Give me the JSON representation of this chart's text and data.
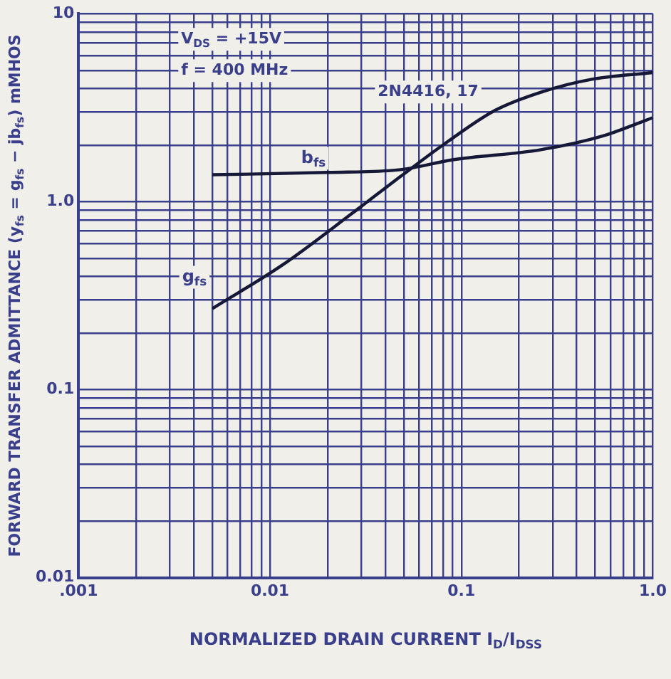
{
  "chart_data": {
    "type": "line",
    "xlabel": "NORMALIZED DRAIN CURRENT I$_{D}$/I$_{DSS}$",
    "ylabel": "FORWARD TRANSFER ADMITTANCE (y$_{fs}$ = g$_{fs}$ − jb$_{fs}$) mMHOS",
    "log": "xy",
    "grid": true,
    "marker": "none",
    "line_style": "solid",
    "xlim": [
      0.001,
      1
    ],
    "ylim": [
      0.01,
      10
    ],
    "xticks": [
      {
        "value": 0.001,
        "label": ".001"
      },
      {
        "value": 0.002,
        "label": null
      },
      {
        "value": 0.003,
        "label": null
      },
      {
        "value": 0.004,
        "label": null
      },
      {
        "value": 0.005,
        "label": null
      },
      {
        "value": 0.006,
        "label": null
      },
      {
        "value": 0.007,
        "label": null
      },
      {
        "value": 0.008,
        "label": null
      },
      {
        "value": 0.009,
        "label": null
      },
      0.01,
      {
        "value": 0.02,
        "label": null
      },
      {
        "value": 0.03,
        "label": null
      },
      {
        "value": 0.04,
        "label": null
      },
      {
        "value": 0.05,
        "label": null
      },
      {
        "value": 0.06,
        "label": null
      },
      {
        "value": 0.07,
        "label": null
      },
      {
        "value": 0.08,
        "label": null
      },
      {
        "value": 0.09,
        "label": null
      },
      0.1,
      {
        "value": 0.2,
        "label": null
      },
      {
        "value": 0.3,
        "label": null
      },
      {
        "value": 0.4,
        "label": null
      },
      {
        "value": 0.5,
        "label": null
      },
      {
        "value": 0.6,
        "label": null
      },
      {
        "value": 0.7,
        "label": null
      },
      {
        "value": 0.8,
        "label": null
      },
      {
        "value": 0.9,
        "label": null
      },
      {
        "value": 1,
        "label": "1.0"
      }
    ],
    "yticks": [
      0.01,
      {
        "value": 0.02,
        "label": null
      },
      {
        "value": 0.03,
        "label": null
      },
      {
        "value": 0.04,
        "label": null
      },
      {
        "value": 0.05,
        "label": null
      },
      {
        "value": 0.06,
        "label": null
      },
      {
        "value": 0.07,
        "label": null
      },
      {
        "value": 0.08,
        "label": null
      },
      {
        "value": 0.09,
        "label": null
      },
      0.1,
      {
        "value": 0.2,
        "label": null
      },
      {
        "value": 0.3,
        "label": null
      },
      {
        "value": 0.4,
        "label": null
      },
      {
        "value": 0.5,
        "label": null
      },
      {
        "value": 0.6,
        "label": null
      },
      {
        "value": 0.7,
        "label": null
      },
      {
        "value": 0.8,
        "label": null
      },
      {
        "value": 0.9,
        "label": null
      },
      {
        "value": 1,
        "label": "1.0"
      },
      {
        "value": 2,
        "label": null
      },
      {
        "value": 3,
        "label": null
      },
      {
        "value": 4,
        "label": null
      },
      {
        "value": 5,
        "label": null
      },
      {
        "value": 6,
        "label": null
      },
      {
        "value": 7,
        "label": null
      },
      {
        "value": 8,
        "label": null
      },
      {
        "value": 9,
        "label": null
      },
      10
    ],
    "series": [
      {
        "name": "g$_{fs}$",
        "color": "#161838",
        "x": [
          0.005,
          0.0116,
          0.027,
          0.048,
          0.085,
          0.15,
          0.26,
          0.47,
          1.0
        ],
        "values": [
          0.27,
          0.46,
          0.87,
          1.36,
          2.09,
          3.06,
          3.82,
          4.46,
          4.86
        ]
      },
      {
        "name": "b$_{fs}$",
        "color": "#161838",
        "x": [
          0.005,
          0.02,
          0.048,
          0.09,
          0.26,
          0.55,
          1.0
        ],
        "values": [
          1.39,
          1.43,
          1.48,
          1.67,
          1.89,
          2.24,
          2.8
        ]
      }
    ],
    "annotations": [
      "V$_{DS}$ = +15V",
      "f = 400 MHz",
      "2N4416, 17"
    ]
  }
}
